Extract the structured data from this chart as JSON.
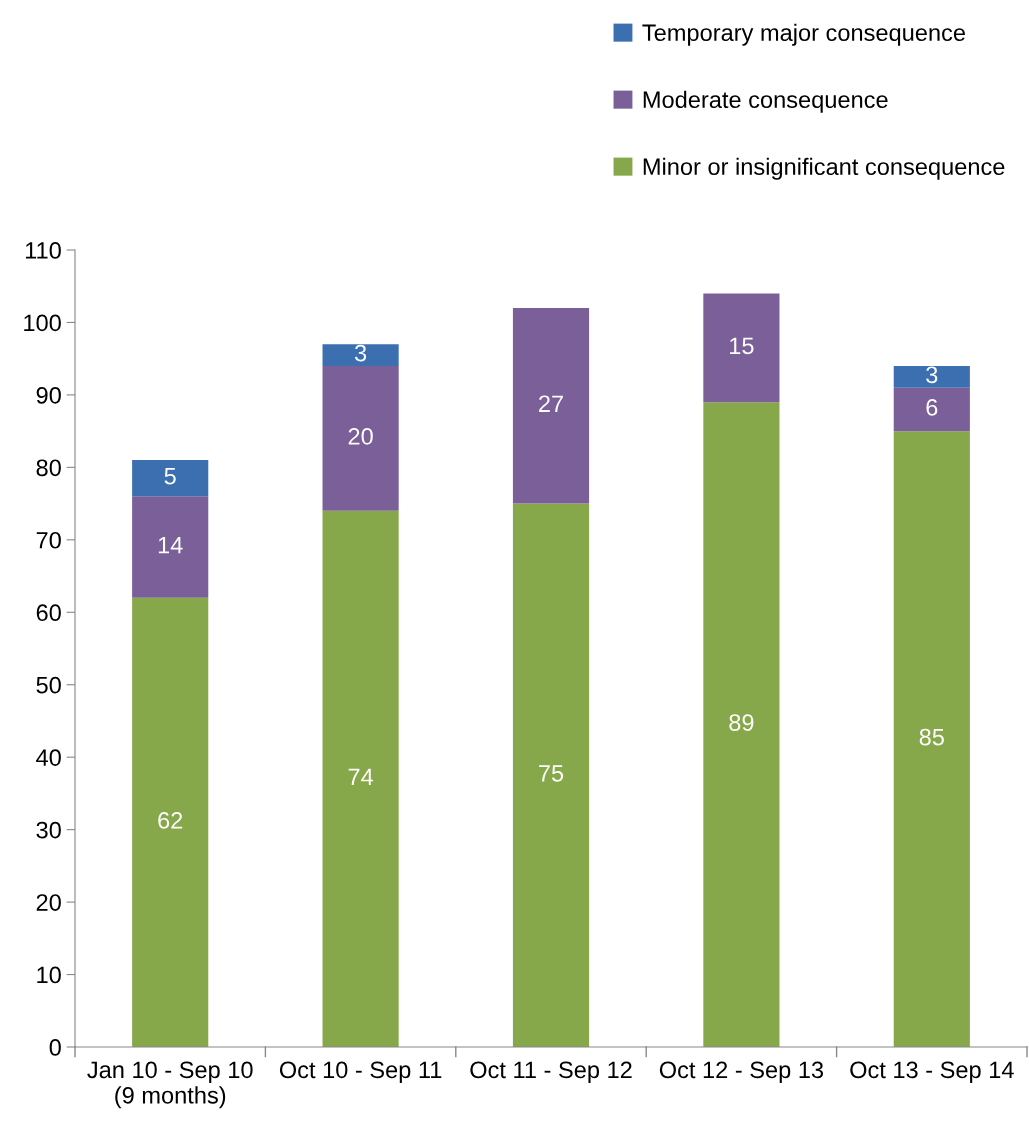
{
  "chart_data": {
    "type": "bar",
    "stacked": true,
    "data_labels": true,
    "grid": false,
    "legend": "top right",
    "categories": [
      "Jan 10 - Sep 10\n(9 months)",
      "Oct 10 - Sep 11",
      "Oct 11 - Sep 12",
      "Oct 12 - Sep 13",
      "Oct 13 - Sep 14"
    ],
    "series": [
      {
        "name": "Minor or insignificant consequence",
        "color": "#86a84a",
        "values": [
          62,
          74,
          75,
          89,
          85
        ]
      },
      {
        "name": "Moderate consequence",
        "color": "#7a5f99",
        "values": [
          14,
          20,
          27,
          15,
          6
        ]
      },
      {
        "name": "Temporary major consequence",
        "color": "#3b6fb0",
        "values": [
          5,
          3,
          null,
          null,
          3
        ]
      }
    ],
    "ylim": [
      0,
      110
    ],
    "yticks": [
      0,
      10,
      20,
      30,
      40,
      50,
      60,
      70,
      80,
      90,
      100,
      110
    ]
  }
}
